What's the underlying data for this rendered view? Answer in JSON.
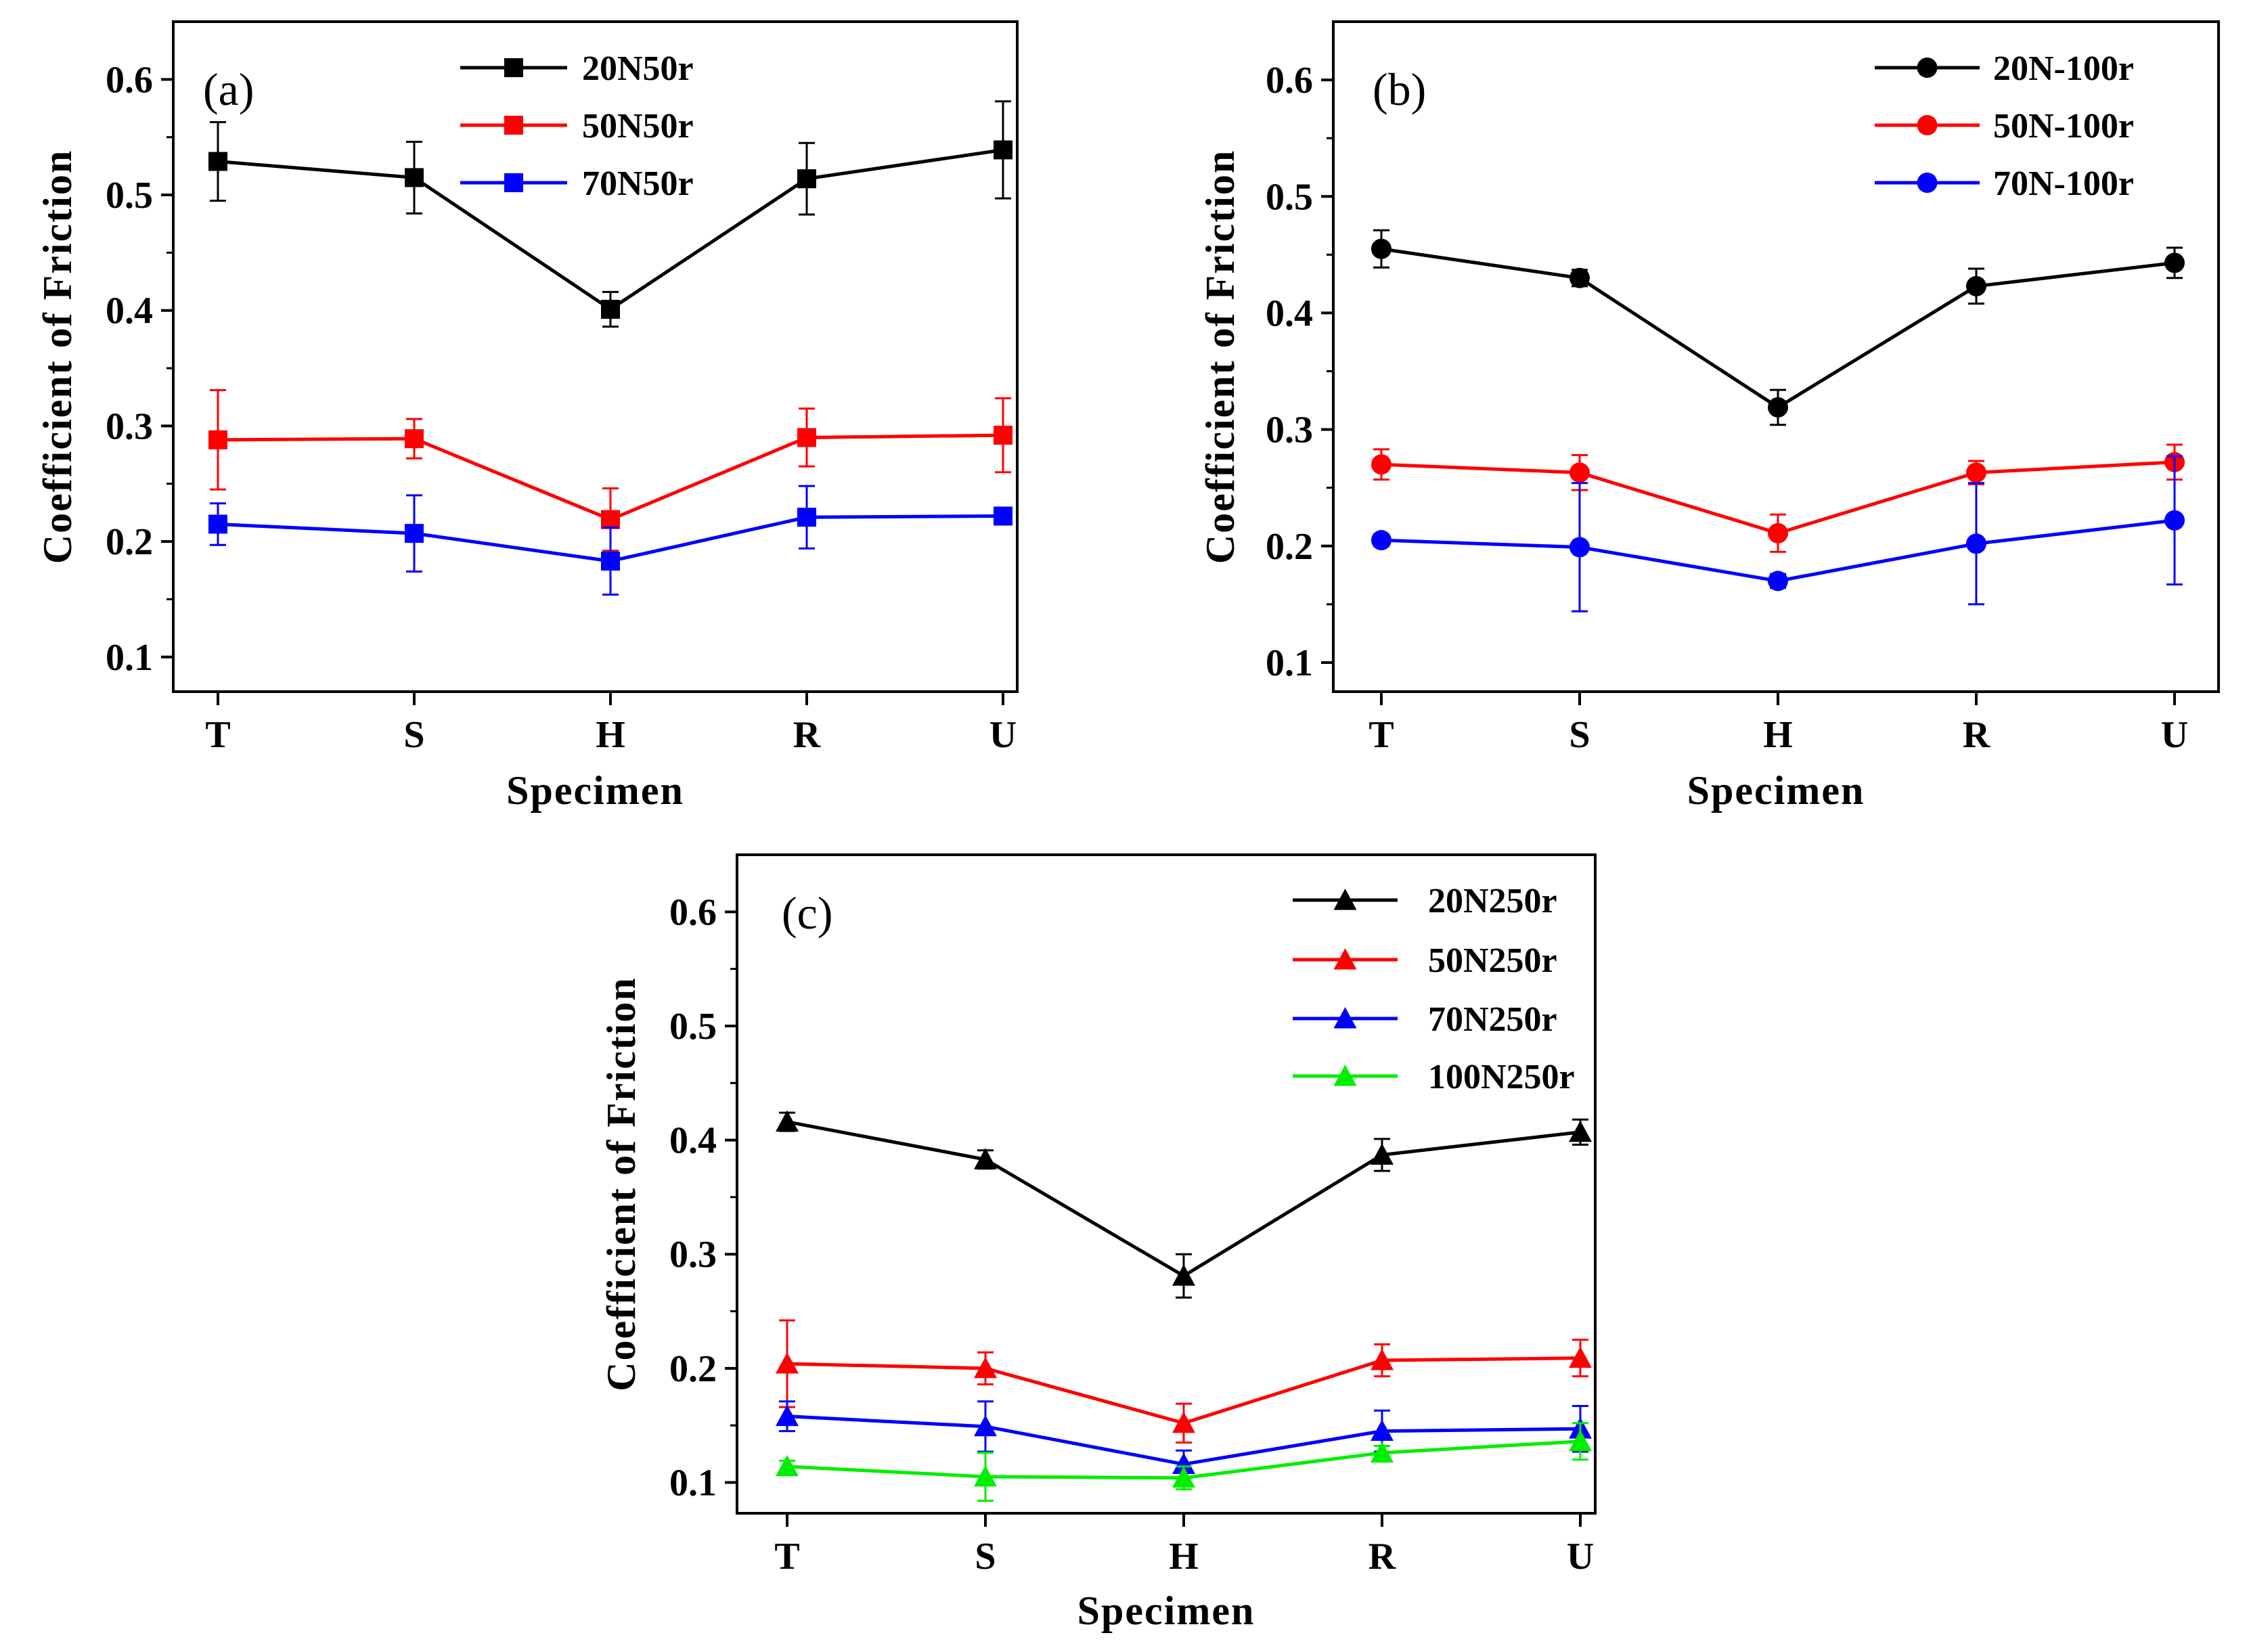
{
  "chart_data": [
    {
      "type": "line",
      "panel_label": "(a)",
      "categories": [
        "T",
        "S",
        "H",
        "R",
        "U"
      ],
      "xlabel": "Specimen",
      "ylabel": "Coefficient of Friction",
      "ylim": [
        0.07,
        0.65
      ],
      "yticks": [
        0.1,
        0.2,
        0.3,
        0.4,
        0.5,
        0.6
      ],
      "ytick_labels": [
        "0.1",
        "0.2",
        "0.3",
        "0.4",
        "0.5",
        "0.6"
      ],
      "marker": "square",
      "legend_position": "top-center",
      "series": [
        {
          "name": "20N50r",
          "color": "#000000",
          "values": [
            0.529,
            0.515,
            0.401,
            0.514,
            0.539
          ],
          "errors": [
            0.034,
            0.031,
            0.015,
            0.031,
            0.042
          ]
        },
        {
          "name": "50N50r",
          "color": "#ff0000",
          "values": [
            0.288,
            0.289,
            0.219,
            0.29,
            0.292
          ],
          "errors": [
            0.043,
            0.017,
            0.027,
            0.025,
            0.032
          ]
        },
        {
          "name": "70N50r",
          "color": "#0000ff",
          "values": [
            0.215,
            0.207,
            0.183,
            0.221,
            0.222
          ],
          "errors": [
            0.018,
            0.033,
            0.029,
            0.027,
            0.006
          ]
        }
      ]
    },
    {
      "type": "line",
      "panel_label": "(b)",
      "categories": [
        "T",
        "S",
        "H",
        "R",
        "U"
      ],
      "xlabel": "Specimen",
      "ylabel": "Coefficient of Friction",
      "ylim": [
        0.075,
        0.65
      ],
      "yticks": [
        0.1,
        0.2,
        0.3,
        0.4,
        0.5,
        0.6
      ],
      "ytick_labels": [
        "0.1",
        "0.2",
        "0.3",
        "0.4",
        "0.5",
        "0.6"
      ],
      "marker": "circle",
      "legend_position": "top-right",
      "series": [
        {
          "name": "20N-100r",
          "color": "#000000",
          "values": [
            0.455,
            0.43,
            0.319,
            0.423,
            0.443
          ],
          "errors": [
            0.016,
            0.007,
            0.015,
            0.015,
            0.013
          ]
        },
        {
          "name": "50N-100r",
          "color": "#ff0000",
          "values": [
            0.27,
            0.263,
            0.211,
            0.263,
            0.272
          ],
          "errors": [
            0.013,
            0.015,
            0.016,
            0.01,
            0.015
          ]
        },
        {
          "name": "70N-100r",
          "color": "#0000ff",
          "values": [
            0.205,
            0.199,
            0.17,
            0.202,
            0.222
          ],
          "errors": [
            0.005,
            0.055,
            0.006,
            0.052,
            0.055
          ]
        }
      ]
    },
    {
      "type": "line",
      "panel_label": "(c)",
      "categories": [
        "T",
        "S",
        "H",
        "R",
        "U"
      ],
      "xlabel": "Specimen",
      "ylabel": "Coefficient of Friction",
      "ylim": [
        0.073,
        0.65
      ],
      "yticks": [
        0.1,
        0.2,
        0.3,
        0.4,
        0.5,
        0.6
      ],
      "ytick_labels": [
        "0.1",
        "0.2",
        "0.3",
        "0.4",
        "0.5",
        "0.6"
      ],
      "marker": "triangle",
      "legend_position": "top-right",
      "series": [
        {
          "name": "20N250r",
          "color": "#000000",
          "values": [
            0.416,
            0.383,
            0.281,
            0.387,
            0.407
          ],
          "errors": [
            0.008,
            0.008,
            0.019,
            0.014,
            0.011
          ]
        },
        {
          "name": "50N250r",
          "color": "#ff0000",
          "values": [
            0.204,
            0.2,
            0.152,
            0.207,
            0.209
          ],
          "errors": [
            0.038,
            0.014,
            0.017,
            0.014,
            0.016
          ]
        },
        {
          "name": "70N250r",
          "color": "#0000ff",
          "values": [
            0.158,
            0.149,
            0.116,
            0.145,
            0.147
          ],
          "errors": [
            0.013,
            0.022,
            0.012,
            0.018,
            0.02
          ]
        },
        {
          "name": "100N250r",
          "color": "#00ee00",
          "values": [
            0.114,
            0.105,
            0.104,
            0.126,
            0.136
          ],
          "errors": [
            0.005,
            0.021,
            0.01,
            0.006,
            0.016
          ]
        }
      ]
    }
  ]
}
